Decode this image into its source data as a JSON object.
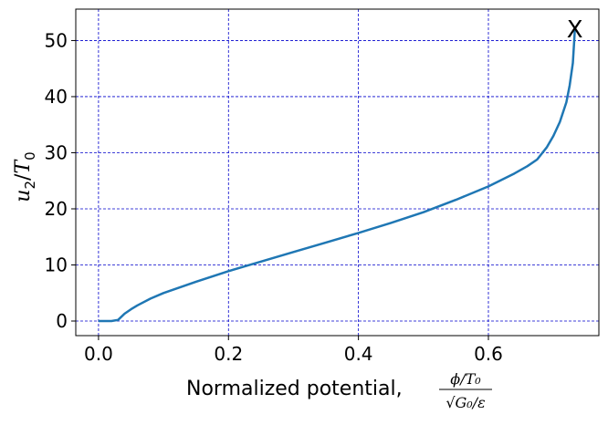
{
  "chart_data": {
    "type": "line",
    "title": "",
    "xlabel": {
      "text": "Normalized potential, ",
      "frac_numerator": "ϕ/T₀",
      "frac_denominator": "√G₀/ε"
    },
    "ylabel": {
      "base": "u",
      "sub": "2",
      "slash": "/",
      "base2": "T",
      "sub2": "0"
    },
    "xlim": [
      -0.035,
      0.77
    ],
    "ylim": [
      -2.6,
      55.6
    ],
    "xticks": [
      0.0,
      0.2,
      0.4,
      0.6
    ],
    "xtick_labels": [
      "0.0",
      "0.2",
      "0.4",
      "0.6"
    ],
    "yticks": [
      0,
      10,
      20,
      30,
      40,
      50
    ],
    "ytick_labels": [
      "0",
      "10",
      "20",
      "30",
      "40",
      "50"
    ],
    "grid": true,
    "grid_color": "#0000cc",
    "line_color": "#1f77b4",
    "series": [
      {
        "x": [
          0.0,
          0.02,
          0.03,
          0.04,
          0.05,
          0.06,
          0.08,
          0.1,
          0.15,
          0.2,
          0.25,
          0.3,
          0.35,
          0.4,
          0.45,
          0.5,
          0.55,
          0.6,
          0.64,
          0.66,
          0.675,
          0.69,
          0.7,
          0.71,
          0.72,
          0.725,
          0.73,
          0.732,
          0.733
        ],
        "y": [
          0.0,
          0.0,
          0.2,
          1.3,
          2.1,
          2.8,
          4.0,
          5.0,
          7.0,
          8.9,
          10.6,
          12.3,
          14.0,
          15.7,
          17.5,
          19.4,
          21.6,
          24.0,
          26.3,
          27.6,
          28.8,
          31.0,
          33.0,
          35.5,
          39.0,
          42.0,
          46.0,
          50.0,
          52.0
        ]
      }
    ],
    "annotation": {
      "text": "X",
      "x": 0.733,
      "y": 52.0
    }
  }
}
